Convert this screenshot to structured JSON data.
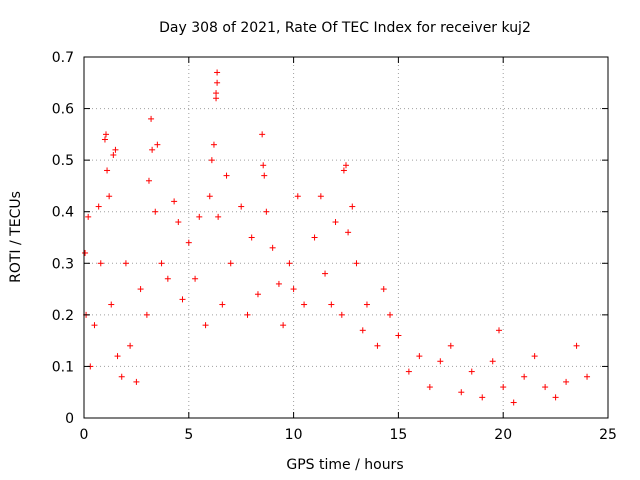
{
  "chart_data": {
    "type": "scatter",
    "title": "Day 308 of 2021, Rate Of TEC Index for receiver kuj2",
    "xlabel": "GPS time / hours",
    "ylabel": "ROTI / TECUs",
    "xlim": [
      0,
      25
    ],
    "ylim": [
      0,
      0.7
    ],
    "xticks": [
      0,
      5,
      10,
      15,
      20,
      25
    ],
    "yticks": [
      0,
      0.1,
      0.2,
      0.3,
      0.4,
      0.5,
      0.6,
      0.7
    ],
    "xtick_labels": [
      "0",
      "5",
      "10",
      "15",
      "20",
      "25"
    ],
    "ytick_labels": [
      "0",
      "0.1",
      "0.2",
      "0.3",
      "0.4",
      "0.5",
      "0.6",
      "0.7"
    ],
    "grid": true,
    "marker": "+",
    "color": "#ff0000",
    "series": [
      {
        "name": "ROTI",
        "points": [
          [
            0.05,
            0.32
          ],
          [
            0.1,
            0.2
          ],
          [
            0.2,
            0.39
          ],
          [
            0.3,
            0.1
          ],
          [
            0.5,
            0.18
          ],
          [
            0.7,
            0.41
          ],
          [
            0.8,
            0.3
          ],
          [
            1.0,
            0.54
          ],
          [
            1.05,
            0.55
          ],
          [
            1.1,
            0.48
          ],
          [
            1.2,
            0.43
          ],
          [
            1.3,
            0.22
          ],
          [
            1.4,
            0.51
          ],
          [
            1.5,
            0.52
          ],
          [
            1.6,
            0.12
          ],
          [
            1.8,
            0.08
          ],
          [
            2.0,
            0.3
          ],
          [
            2.2,
            0.14
          ],
          [
            2.5,
            0.07
          ],
          [
            2.7,
            0.25
          ],
          [
            3.0,
            0.2
          ],
          [
            3.1,
            0.46
          ],
          [
            3.2,
            0.58
          ],
          [
            3.25,
            0.52
          ],
          [
            3.4,
            0.4
          ],
          [
            3.5,
            0.53
          ],
          [
            3.7,
            0.3
          ],
          [
            4.0,
            0.27
          ],
          [
            4.3,
            0.42
          ],
          [
            4.5,
            0.38
          ],
          [
            4.7,
            0.23
          ],
          [
            5.0,
            0.34
          ],
          [
            5.3,
            0.27
          ],
          [
            5.5,
            0.39
          ],
          [
            5.8,
            0.18
          ],
          [
            6.0,
            0.43
          ],
          [
            6.1,
            0.5
          ],
          [
            6.2,
            0.53
          ],
          [
            6.3,
            0.62
          ],
          [
            6.3,
            0.63
          ],
          [
            6.35,
            0.65
          ],
          [
            6.35,
            0.67
          ],
          [
            6.4,
            0.39
          ],
          [
            6.6,
            0.22
          ],
          [
            6.8,
            0.47
          ],
          [
            7.0,
            0.3
          ],
          [
            7.5,
            0.41
          ],
          [
            7.8,
            0.2
          ],
          [
            8.0,
            0.35
          ],
          [
            8.3,
            0.24
          ],
          [
            8.5,
            0.55
          ],
          [
            8.55,
            0.49
          ],
          [
            8.6,
            0.47
          ],
          [
            8.7,
            0.4
          ],
          [
            9.0,
            0.33
          ],
          [
            9.3,
            0.26
          ],
          [
            9.5,
            0.18
          ],
          [
            9.8,
            0.3
          ],
          [
            10.0,
            0.25
          ],
          [
            10.2,
            0.43
          ],
          [
            10.5,
            0.22
          ],
          [
            11.0,
            0.35
          ],
          [
            11.3,
            0.43
          ],
          [
            11.5,
            0.28
          ],
          [
            11.8,
            0.22
          ],
          [
            12.0,
            0.38
          ],
          [
            12.3,
            0.2
          ],
          [
            12.4,
            0.48
          ],
          [
            12.5,
            0.49
          ],
          [
            12.6,
            0.36
          ],
          [
            12.8,
            0.41
          ],
          [
            13.0,
            0.3
          ],
          [
            13.3,
            0.17
          ],
          [
            13.5,
            0.22
          ],
          [
            14.0,
            0.14
          ],
          [
            14.3,
            0.25
          ],
          [
            14.6,
            0.2
          ],
          [
            15.0,
            0.16
          ],
          [
            15.5,
            0.09
          ],
          [
            16.0,
            0.12
          ],
          [
            16.5,
            0.06
          ],
          [
            17.0,
            0.11
          ],
          [
            17.5,
            0.14
          ],
          [
            18.0,
            0.05
          ],
          [
            18.5,
            0.09
          ],
          [
            19.0,
            0.04
          ],
          [
            19.5,
            0.11
          ],
          [
            19.8,
            0.17
          ],
          [
            20.0,
            0.06
          ],
          [
            20.5,
            0.03
          ],
          [
            21.0,
            0.08
          ],
          [
            21.5,
            0.12
          ],
          [
            22.0,
            0.06
          ],
          [
            22.5,
            0.04
          ],
          [
            23.0,
            0.07
          ],
          [
            23.5,
            0.14
          ],
          [
            24.0,
            0.08
          ]
        ]
      }
    ]
  }
}
